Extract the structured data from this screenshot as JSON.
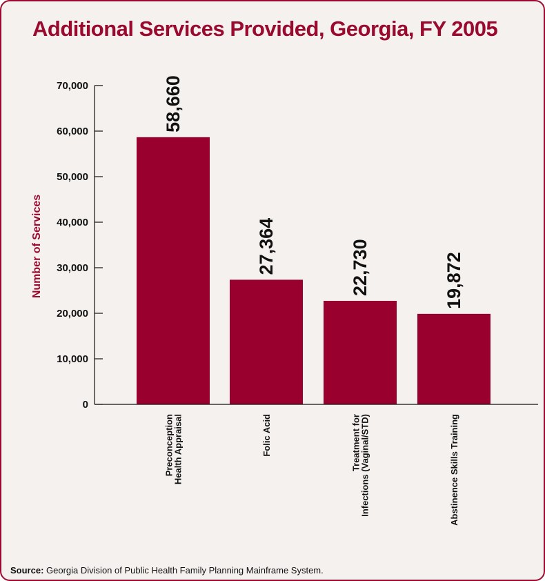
{
  "title": "Additional Services Provided, Georgia, FY 2005",
  "source": {
    "label": "Source:",
    "text": "Georgia Division of Public Health Family Planning Mainframe System."
  },
  "colors": {
    "bar": "#99002e",
    "title": "#9a0a2e",
    "background": "#f5f1ef",
    "border": "#9a0a2e"
  },
  "chart_data": {
    "type": "bar",
    "ylabel": "Number of Services",
    "xlabel": "",
    "ylim": [
      0,
      70000
    ],
    "yticks": [
      0,
      10000,
      20000,
      30000,
      40000,
      50000,
      60000,
      70000
    ],
    "ytick_labels": [
      "0",
      "10,000",
      "20,000",
      "30,000",
      "40,000",
      "50,000",
      "60,000",
      "70,000"
    ],
    "categories": [
      [
        "Preconception",
        "Health Appraisal"
      ],
      [
        "Folic Acid"
      ],
      [
        "Treatment for",
        "Infections (Vaginal/STD)"
      ],
      [
        "Abstinence Skills Training"
      ]
    ],
    "values": [
      58660,
      27364,
      22730,
      19872
    ],
    "value_labels": [
      "58,660",
      "27,364",
      "22,730",
      "19,872"
    ],
    "grid": false,
    "legend": "none"
  }
}
